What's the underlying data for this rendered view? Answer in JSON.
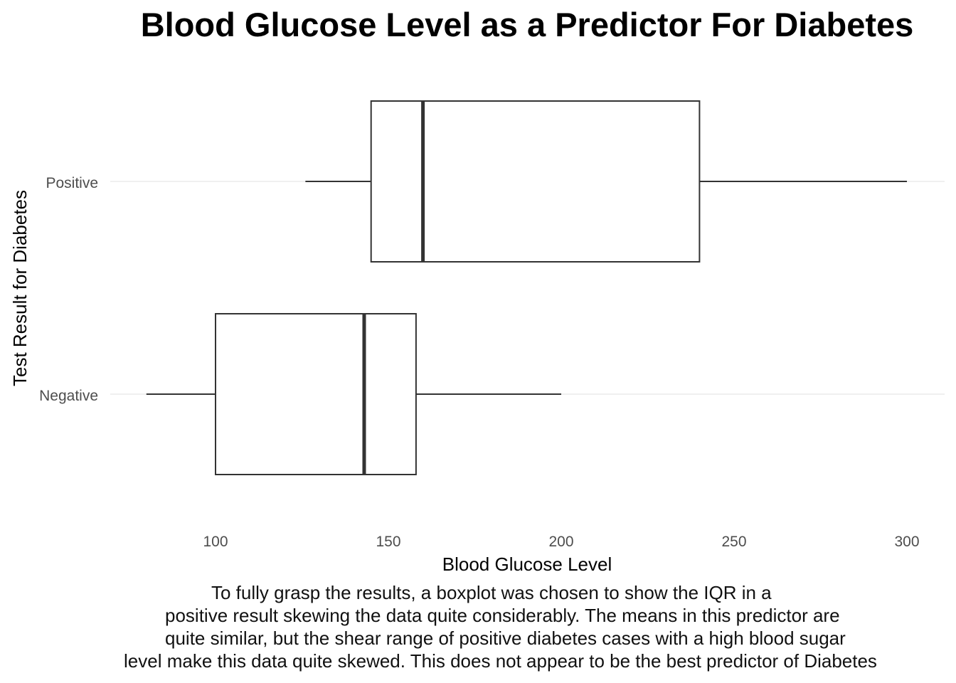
{
  "chart_data": {
    "type": "boxplot",
    "orientation": "horizontal",
    "title": "Blood Glucose Level as a Predictor For Diabetes",
    "xlabel": "Blood Glucose Level",
    "ylabel": "Test Result for Diabetes",
    "xlim": [
      70,
      312
    ],
    "xticks": [
      100,
      150,
      200,
      250,
      300
    ],
    "grid": "major y only",
    "categories": [
      "Positive",
      "Negative"
    ],
    "boxes": [
      {
        "category": "Positive",
        "whisker_low": 126,
        "q1": 145,
        "median": 160,
        "q3": 240,
        "whisker_high": 300
      },
      {
        "category": "Negative",
        "whisker_low": 80,
        "q1": 100,
        "median": 143,
        "q3": 158,
        "whisker_high": 200
      }
    ],
    "colors": {
      "box_stroke": "#333333",
      "box_fill": "#ffffff",
      "grid": "#ebebeb",
      "tick_text": "#4d4d4d"
    }
  },
  "caption_lines": [
    "To fully grasp the results, a boxplot was chosen to show the IQR in a",
    "positive result skewing the data quite considerably. The means in this predictor are",
    "quite similar, but the shear range of positive diabetes cases with a high blood sugar",
    "level make this data quite skewed. This does not appear to be the best predictor of Diabetes"
  ]
}
